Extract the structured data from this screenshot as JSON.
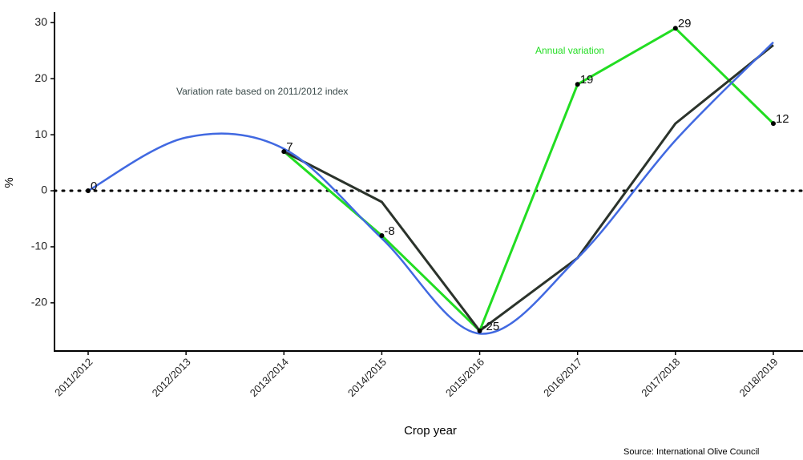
{
  "chart_data": {
    "type": "line",
    "categories": [
      "2011/2012",
      "2012/2013",
      "2013/2014",
      "2014/2015",
      "2015/2016",
      "2016/2017",
      "2017/2018",
      "2018/2019"
    ],
    "series": [
      {
        "name": "Annual variation",
        "color": "#22dd22",
        "values": [
          0,
          null,
          7,
          -8,
          -25,
          19,
          29,
          12
        ],
        "labels": true
      },
      {
        "name": "Variation rate based on 2011/2012 index",
        "color": "#2b332b",
        "values": [
          0,
          null,
          7,
          -2,
          -25,
          -12,
          12,
          26
        ]
      },
      {
        "color": "#4169e1",
        "values": [
          0,
          9.5,
          7.5,
          -8.5,
          -25.5,
          -12,
          9,
          26.5
        ],
        "smooth": true
      }
    ],
    "ylim": [
      -28.6,
      31.9
    ],
    "yticks": [
      -20,
      -10,
      0,
      10,
      20,
      30
    ],
    "hline": 0,
    "xlabel": "Crop year",
    "ylabel": "%",
    "source": "Source: International Olive Council"
  }
}
